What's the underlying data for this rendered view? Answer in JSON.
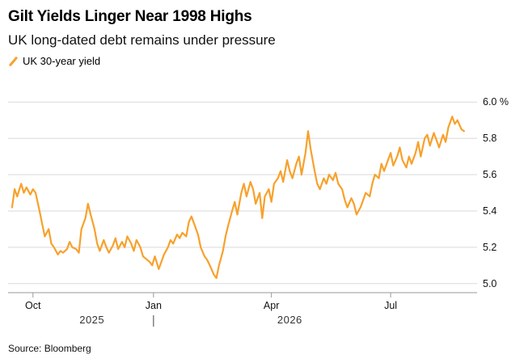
{
  "chart_data": {
    "type": "line",
    "title": "Gilt Yields Linger Near 1998 Highs",
    "subtitle": "UK long-dated debt remains under pressure",
    "source": "Source: Bloomberg",
    "series": [
      {
        "name": "UK 30-year yield",
        "color": "#f7a12c",
        "points": [
          [
            "2025-09-15",
            5.42
          ],
          [
            "2025-09-17",
            5.52
          ],
          [
            "2025-09-19",
            5.48
          ],
          [
            "2025-09-22",
            5.55
          ],
          [
            "2025-09-24",
            5.5
          ],
          [
            "2025-09-26",
            5.53
          ],
          [
            "2025-09-29",
            5.49
          ],
          [
            "2025-10-01",
            5.52
          ],
          [
            "2025-10-03",
            5.5
          ],
          [
            "2025-10-06",
            5.4
          ],
          [
            "2025-10-08",
            5.33
          ],
          [
            "2025-10-10",
            5.26
          ],
          [
            "2025-10-13",
            5.3
          ],
          [
            "2025-10-15",
            5.22
          ],
          [
            "2025-10-17",
            5.2
          ],
          [
            "2025-10-20",
            5.16
          ],
          [
            "2025-10-22",
            5.18
          ],
          [
            "2025-10-24",
            5.17
          ],
          [
            "2025-10-27",
            5.19
          ],
          [
            "2025-10-29",
            5.23
          ],
          [
            "2025-10-31",
            5.2
          ],
          [
            "2025-11-03",
            5.19
          ],
          [
            "2025-11-05",
            5.17
          ],
          [
            "2025-11-07",
            5.3
          ],
          [
            "2025-11-10",
            5.36
          ],
          [
            "2025-11-12",
            5.44
          ],
          [
            "2025-11-14",
            5.38
          ],
          [
            "2025-11-17",
            5.3
          ],
          [
            "2025-11-19",
            5.22
          ],
          [
            "2025-11-21",
            5.18
          ],
          [
            "2025-11-24",
            5.24
          ],
          [
            "2025-11-26",
            5.2
          ],
          [
            "2025-11-28",
            5.17
          ],
          [
            "2025-12-01",
            5.21
          ],
          [
            "2025-12-03",
            5.25
          ],
          [
            "2025-12-05",
            5.19
          ],
          [
            "2025-12-08",
            5.23
          ],
          [
            "2025-12-10",
            5.2
          ],
          [
            "2025-12-12",
            5.26
          ],
          [
            "2025-12-15",
            5.22
          ],
          [
            "2025-12-17",
            5.18
          ],
          [
            "2025-12-19",
            5.24
          ],
          [
            "2025-12-22",
            5.2
          ],
          [
            "2025-12-24",
            5.15
          ],
          [
            "2025-12-29",
            5.12
          ],
          [
            "2025-12-31",
            5.1
          ],
          [
            "2026-01-02",
            5.15
          ],
          [
            "2026-01-05",
            5.08
          ],
          [
            "2026-01-07",
            5.12
          ],
          [
            "2026-01-09",
            5.16
          ],
          [
            "2026-01-12",
            5.2
          ],
          [
            "2026-01-14",
            5.24
          ],
          [
            "2026-01-16",
            5.22
          ],
          [
            "2026-01-19",
            5.27
          ],
          [
            "2026-01-21",
            5.25
          ],
          [
            "2026-01-23",
            5.28
          ],
          [
            "2026-01-26",
            5.26
          ],
          [
            "2026-01-28",
            5.34
          ],
          [
            "2026-01-30",
            5.37
          ],
          [
            "2026-02-02",
            5.31
          ],
          [
            "2026-02-04",
            5.27
          ],
          [
            "2026-02-06",
            5.2
          ],
          [
            "2026-02-09",
            5.15
          ],
          [
            "2026-02-11",
            5.13
          ],
          [
            "2026-02-13",
            5.1
          ],
          [
            "2026-02-16",
            5.05
          ],
          [
            "2026-02-18",
            5.03
          ],
          [
            "2026-02-20",
            5.1
          ],
          [
            "2026-02-23",
            5.18
          ],
          [
            "2026-02-25",
            5.26
          ],
          [
            "2026-02-27",
            5.32
          ],
          [
            "2026-03-02",
            5.4
          ],
          [
            "2026-03-04",
            5.45
          ],
          [
            "2026-03-06",
            5.38
          ],
          [
            "2026-03-09",
            5.5
          ],
          [
            "2026-03-11",
            5.55
          ],
          [
            "2026-03-13",
            5.48
          ],
          [
            "2026-03-16",
            5.56
          ],
          [
            "2026-03-18",
            5.52
          ],
          [
            "2026-03-20",
            5.44
          ],
          [
            "2026-03-23",
            5.5
          ],
          [
            "2026-03-25",
            5.36
          ],
          [
            "2026-03-27",
            5.48
          ],
          [
            "2026-03-30",
            5.52
          ],
          [
            "2026-04-01",
            5.45
          ],
          [
            "2026-04-03",
            5.55
          ],
          [
            "2026-04-06",
            5.58
          ],
          [
            "2026-04-08",
            5.62
          ],
          [
            "2026-04-10",
            5.56
          ],
          [
            "2026-04-13",
            5.68
          ],
          [
            "2026-04-15",
            5.62
          ],
          [
            "2026-04-17",
            5.58
          ],
          [
            "2026-04-20",
            5.66
          ],
          [
            "2026-04-22",
            5.7
          ],
          [
            "2026-04-24",
            5.6
          ],
          [
            "2026-04-27",
            5.72
          ],
          [
            "2026-04-29",
            5.84
          ],
          [
            "2026-05-01",
            5.74
          ],
          [
            "2026-05-04",
            5.62
          ],
          [
            "2026-05-06",
            5.55
          ],
          [
            "2026-05-08",
            5.52
          ],
          [
            "2026-05-11",
            5.58
          ],
          [
            "2026-05-13",
            5.55
          ],
          [
            "2026-05-15",
            5.6
          ],
          [
            "2026-05-18",
            5.57
          ],
          [
            "2026-05-20",
            5.61
          ],
          [
            "2026-05-22",
            5.55
          ],
          [
            "2026-05-25",
            5.52
          ],
          [
            "2026-05-27",
            5.46
          ],
          [
            "2026-05-29",
            5.42
          ],
          [
            "2026-06-01",
            5.47
          ],
          [
            "2026-06-03",
            5.44
          ],
          [
            "2026-06-05",
            5.38
          ],
          [
            "2026-06-08",
            5.42
          ],
          [
            "2026-06-10",
            5.46
          ],
          [
            "2026-06-12",
            5.5
          ],
          [
            "2026-06-15",
            5.48
          ],
          [
            "2026-06-17",
            5.55
          ],
          [
            "2026-06-19",
            5.6
          ],
          [
            "2026-06-22",
            5.58
          ],
          [
            "2026-06-24",
            5.66
          ],
          [
            "2026-06-26",
            5.62
          ],
          [
            "2026-06-29",
            5.68
          ],
          [
            "2026-07-01",
            5.72
          ],
          [
            "2026-07-03",
            5.65
          ],
          [
            "2026-07-06",
            5.7
          ],
          [
            "2026-07-08",
            5.75
          ],
          [
            "2026-07-10",
            5.68
          ],
          [
            "2026-07-13",
            5.64
          ],
          [
            "2026-07-15",
            5.7
          ],
          [
            "2026-07-17",
            5.66
          ],
          [
            "2026-07-20",
            5.72
          ],
          [
            "2026-07-22",
            5.78
          ],
          [
            "2026-07-24",
            5.7
          ],
          [
            "2026-07-27",
            5.8
          ],
          [
            "2026-07-29",
            5.82
          ],
          [
            "2026-07-31",
            5.76
          ],
          [
            "2026-08-03",
            5.83
          ],
          [
            "2026-08-05",
            5.79
          ],
          [
            "2026-08-07",
            5.75
          ],
          [
            "2026-08-10",
            5.82
          ],
          [
            "2026-08-12",
            5.78
          ],
          [
            "2026-08-14",
            5.86
          ],
          [
            "2026-08-17",
            5.92
          ],
          [
            "2026-08-19",
            5.88
          ],
          [
            "2026-08-21",
            5.9
          ],
          [
            "2026-08-24",
            5.85
          ],
          [
            "2026-08-26",
            5.84
          ]
        ]
      }
    ],
    "x_ticks": [
      {
        "date": "2025-10-01",
        "label": "Oct"
      },
      {
        "date": "2026-01-01",
        "label": "Jan"
      },
      {
        "date": "2026-04-01",
        "label": "Apr"
      },
      {
        "date": "2026-07-01",
        "label": "Jul"
      }
    ],
    "year_labels": [
      {
        "date": "2025-11-15",
        "label": "2025"
      },
      {
        "date": "2026-04-15",
        "label": "2026"
      }
    ],
    "year_divider_date": "2026-01-01",
    "xlim": [
      "2025-09-12",
      "2026-09-05"
    ],
    "y_ticks": [
      {
        "value": 6.0,
        "label": "6.0 %"
      },
      {
        "value": 5.8,
        "label": "5.8"
      },
      {
        "value": 5.6,
        "label": "5.6"
      },
      {
        "value": 5.4,
        "label": "5.4"
      },
      {
        "value": 5.2,
        "label": "5.2"
      },
      {
        "value": 5.0,
        "label": "5.0"
      }
    ],
    "ylim": [
      4.95,
      6.05
    ],
    "grid": true,
    "legend_position": "top-left"
  }
}
